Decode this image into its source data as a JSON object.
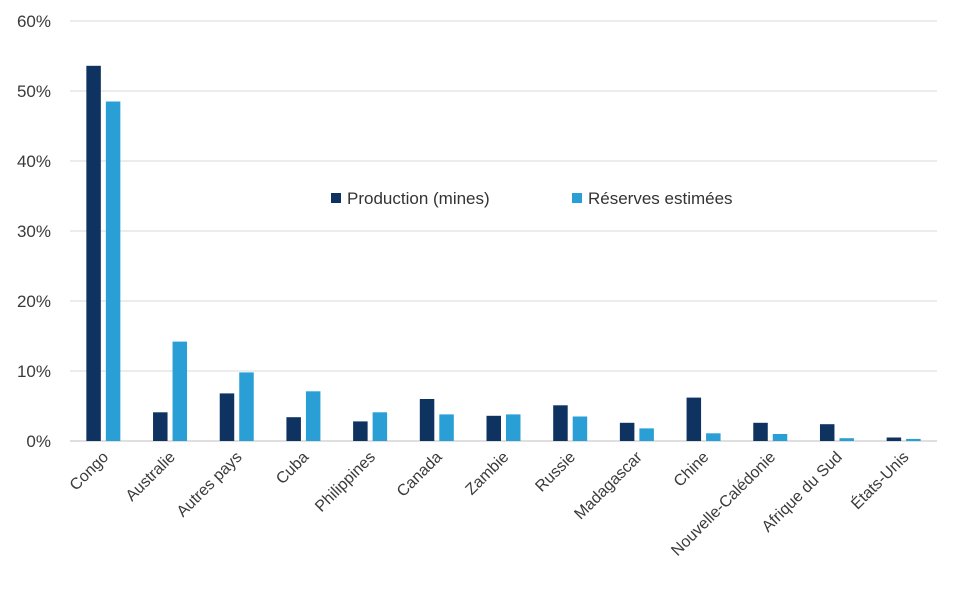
{
  "chart_data": {
    "type": "bar",
    "title": "",
    "xlabel": "",
    "ylabel": "",
    "ylim": [
      0,
      60
    ],
    "yticks": [
      0,
      10,
      20,
      30,
      40,
      50,
      60
    ],
    "ytick_labels": [
      "0%",
      "10%",
      "20%",
      "30%",
      "40%",
      "50%",
      "60%"
    ],
    "grid": true,
    "legend_position": "center",
    "categories": [
      "Congo",
      "Australie",
      "Autres pays",
      "Cuba",
      "Philippines",
      "Canada",
      "Zambie",
      "Russie",
      "Madagascar",
      "Chine",
      "Nouvelle-Calédonie",
      "Afrique du Sud",
      "États-Unis"
    ],
    "series": [
      {
        "name": "Production (mines)",
        "color": "#0f3360",
        "values": [
          53.6,
          4.1,
          6.8,
          3.4,
          2.8,
          6.0,
          3.6,
          5.1,
          2.6,
          6.2,
          2.6,
          2.4,
          0.5
        ]
      },
      {
        "name": "Réserves estimées",
        "color": "#2a9fd6",
        "values": [
          48.5,
          14.2,
          9.8,
          7.1,
          4.1,
          3.8,
          3.8,
          3.5,
          1.8,
          1.1,
          1.0,
          0.4,
          0.3
        ]
      }
    ]
  }
}
